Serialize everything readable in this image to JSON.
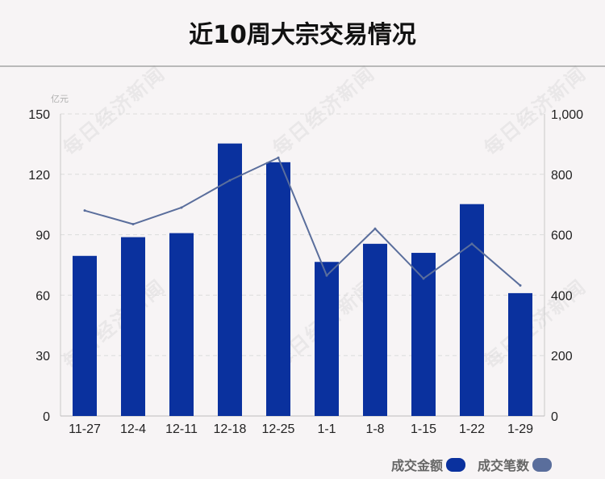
{
  "title": "近10周大宗交易情况",
  "watermark": "每日经济新闻",
  "chart_data": {
    "type": "bar",
    "categories": [
      "11-27",
      "12-4",
      "12-11",
      "12-18",
      "12-25",
      "1-1",
      "1-8",
      "1-15",
      "1-22",
      "1-29"
    ],
    "series": [
      {
        "name": "成交金额",
        "chart_type": "bar",
        "axis": "left",
        "values": [
          79.5,
          88.8,
          90.8,
          135.3,
          126.0,
          76.5,
          85.5,
          81.0,
          105.2,
          61.0
        ],
        "color": "#0a319e"
      },
      {
        "name": "成交笔数",
        "chart_type": "line",
        "axis": "right",
        "values": [
          680,
          635,
          690,
          780,
          855,
          465,
          620,
          455,
          570,
          432
        ],
        "color": "#5a6e9c"
      }
    ],
    "y_left": {
      "unit_label": "亿元",
      "ylim": [
        0,
        150
      ],
      "ticks": [
        0,
        30,
        60,
        90,
        120,
        150
      ],
      "tick_labels": [
        "0",
        "30",
        "60",
        "90",
        "120",
        "150"
      ]
    },
    "y_right": {
      "ylim": [
        0,
        1000
      ],
      "ticks": [
        0,
        200,
        400,
        600,
        800,
        1000
      ],
      "tick_labels": [
        "0",
        "200",
        "400",
        "600",
        "800",
        "1,000"
      ]
    },
    "grid": "horizontal dashed",
    "legend_position": "bottom-right",
    "legend": [
      {
        "label": "成交金额",
        "color": "#0a319e"
      },
      {
        "label": "成交笔数",
        "color": "#5a6e9c"
      }
    ]
  }
}
